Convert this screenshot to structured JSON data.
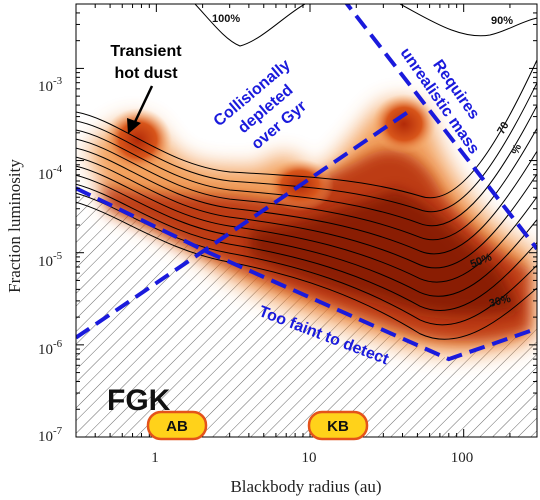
{
  "chart_data": {
    "type": "heatmap",
    "xlabel": "Blackbody radius (au)",
    "ylabel": "Fraction luminosity",
    "x_scale": "log",
    "y_scale": "log",
    "xlim": [
      0.3,
      300
    ],
    "ylim": [
      1e-07,
      0.005
    ],
    "x_ticks": [
      {
        "value": 1,
        "label": "1"
      },
      {
        "value": 10,
        "label": "10"
      },
      {
        "value": 100,
        "label": "100"
      }
    ],
    "y_ticks": [
      {
        "value": 1e-07,
        "base": "10",
        "exp": "-7"
      },
      {
        "value": 1e-06,
        "base": "10",
        "exp": "-6"
      },
      {
        "value": 1e-05,
        "base": "10",
        "exp": "-5"
      },
      {
        "value": 0.0001,
        "base": "10",
        "exp": "-4"
      },
      {
        "value": 0.001,
        "base": "10",
        "exp": "-3"
      }
    ],
    "contour_labels": [
      {
        "text": "100%",
        "x": 2.9,
        "y": 0.0039
      },
      {
        "text": "90%",
        "x": 200,
        "y": 0.0038
      },
      {
        "text": "70",
        "x": 215,
        "y": 0.00031
      },
      {
        "text": "%",
        "x": 240,
        "y": 0.00018
      },
      {
        "text": "50%",
        "x": 110,
        "y": 1.1e-05
      },
      {
        "text": "30%",
        "x": 125,
        "y": 3.7e-06
      }
    ],
    "detection_limit": [
      [
        0.3,
        5e-05
      ],
      [
        2.2,
        1e-05
      ],
      [
        80,
        7e-07
      ],
      [
        300,
        1.5e-06
      ]
    ],
    "sensitivity_limit": [
      [
        0.3,
        1.2e-06
      ],
      [
        45,
        0.00035
      ]
    ],
    "mass_limit": [
      [
        16,
        0.006
      ],
      [
        300,
        1.1e-05
      ]
    ],
    "annotations": {
      "transient": [
        "Transient",
        "hot dust"
      ],
      "collisional": [
        "Collisionally",
        "depleted",
        "over Gyr"
      ],
      "mass": [
        "Requires",
        "unrealistic mass"
      ],
      "faint": "Too faint to detect",
      "spectral": "FGK"
    },
    "belts": [
      {
        "label": "AB",
        "x": 1.6
      },
      {
        "label": "KB",
        "x": 15
      }
    ],
    "colors": {
      "density_dark": "#8a1a04",
      "density_mid": "#c43a0c",
      "density_light": "#f08a30",
      "limit_lines": "#1a1adc",
      "contours": "#000000",
      "badge_fill": "#ffd21a",
      "badge_stroke": "#e4531a"
    }
  }
}
